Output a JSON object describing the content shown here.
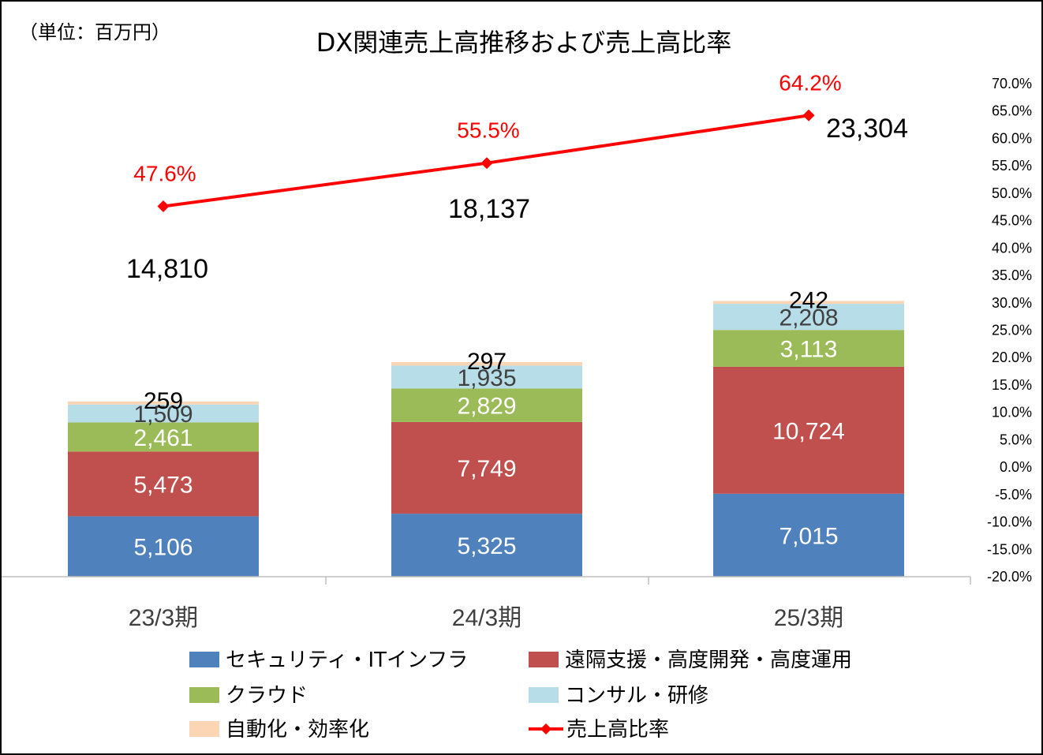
{
  "chart_data": {
    "type": "bar",
    "stacked": true,
    "unit_label": "（単位：百万円）",
    "title": "DX関連売上高推移および売上高比率",
    "categories": [
      "23/3期",
      "24/3期",
      "25/3期"
    ],
    "series": [
      {
        "name": "セキュリティ・ITインフラ",
        "values": [
          5106,
          5325,
          7015
        ],
        "color": "#4f81bd",
        "label_color": "#ffffff"
      },
      {
        "name": "遠隔支援・高度開発・高度運用",
        "values": [
          5473,
          7749,
          10724
        ],
        "color": "#c0504d",
        "label_color": "#ffffff"
      },
      {
        "name": "クラウド",
        "values": [
          2461,
          2829,
          3113
        ],
        "color": "#9bbb59",
        "label_color": "#ffffff"
      },
      {
        "name": "コンサル・研修",
        "values": [
          1509,
          1935,
          2208
        ],
        "color": "#b7dde8",
        "label_color": "#404040"
      },
      {
        "name": "自動化・効率化",
        "values": [
          259,
          297,
          242
        ],
        "color": "#fcd5b5",
        "label_color": "#000000"
      }
    ],
    "segment_labels": [
      [
        "5,106",
        "5,325",
        "7,015"
      ],
      [
        "5,473",
        "7,749",
        "10,724"
      ],
      [
        "2,461",
        "2,829",
        "3,113"
      ],
      [
        "1,509",
        "1,935",
        "2,208"
      ],
      [
        "259",
        "297",
        "242"
      ]
    ],
    "totals": [
      14810,
      18137,
      23304
    ],
    "total_labels": [
      "14,810",
      "18,137",
      "23,304"
    ],
    "line_series": {
      "name": "売上高比率",
      "values": [
        47.6,
        55.5,
        64.2
      ],
      "labels": [
        "47.6%",
        "55.5%",
        "64.2%"
      ],
      "color": "#ff0000",
      "axis": "right"
    },
    "y_left_range": [
      0,
      24000
    ],
    "y_right_range": [
      -20,
      70
    ],
    "y_right_ticks": [
      "70.0%",
      "65.0%",
      "60.0%",
      "55.0%",
      "50.0%",
      "45.0%",
      "40.0%",
      "35.0%",
      "30.0%",
      "25.0%",
      "20.0%",
      "15.0%",
      "10.0%",
      "5.0%",
      "0.0%",
      "-5.0%",
      "-10.0%",
      "-15.0%",
      "-20.0%"
    ],
    "grid": false,
    "legend_position": "bottom"
  }
}
